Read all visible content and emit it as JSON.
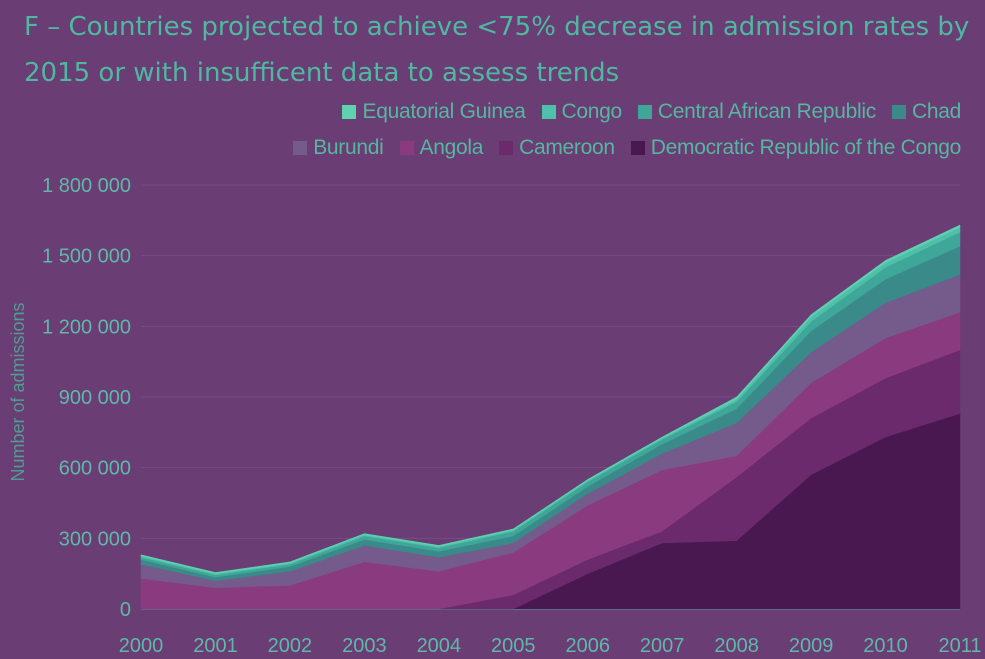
{
  "chart_data": {
    "type": "area",
    "stacked": true,
    "title": "F – Countries projected to achieve <75% decrease in admission rates by 2015 or with insufficent data to assess trends",
    "ylabel": "Number of admissions",
    "xlabel": "",
    "x": [
      "2000",
      "2001",
      "2002",
      "2003",
      "2004",
      "2005",
      "2006",
      "2007",
      "2008",
      "2009",
      "2010",
      "2011"
    ],
    "yticks": [
      "0",
      "300 000",
      "600 000",
      "900 000",
      "1 200 000",
      "1 500 000",
      "1 800 000"
    ],
    "ylim": [
      0,
      1800000
    ],
    "grid": true,
    "legend_position": "top-right",
    "legend_order": [
      "Equatorial Guinea",
      "Congo",
      "Central African Republic",
      "Chad",
      "Burundi",
      "Angola",
      "Cameroon",
      "Democratic Republic of the Congo"
    ],
    "series": [
      {
        "name": "Democratic Republic of the Congo",
        "color": "#4a1850",
        "values": [
          0,
          0,
          0,
          0,
          0,
          0,
          150000,
          280000,
          290000,
          570000,
          730000,
          830000
        ]
      },
      {
        "name": "Cameroon",
        "color": "#6a2a6c",
        "values": [
          0,
          0,
          0,
          0,
          0,
          60000,
          60000,
          50000,
          270000,
          240000,
          250000,
          270000
        ]
      },
      {
        "name": "Angola",
        "color": "#8a3a7e",
        "values": [
          130000,
          90000,
          100000,
          200000,
          160000,
          180000,
          230000,
          260000,
          90000,
          150000,
          170000,
          160000
        ]
      },
      {
        "name": "Burundi",
        "color": "#755a8c",
        "values": [
          60000,
          30000,
          60000,
          70000,
          60000,
          40000,
          50000,
          70000,
          140000,
          130000,
          150000,
          160000
        ]
      },
      {
        "name": "Chad",
        "color": "#3a8a8a",
        "values": [
          20000,
          15000,
          20000,
          25000,
          25000,
          30000,
          30000,
          40000,
          60000,
          90000,
          100000,
          120000
        ]
      },
      {
        "name": "Central African Republic",
        "color": "#3fa69a",
        "values": [
          10000,
          10000,
          10000,
          15000,
          15000,
          20000,
          20000,
          20000,
          30000,
          40000,
          50000,
          60000
        ]
      },
      {
        "name": "Congo",
        "color": "#4ebfa8",
        "values": [
          5000,
          5000,
          5000,
          5000,
          5000,
          5000,
          5000,
          5000,
          10000,
          20000,
          20000,
          20000
        ]
      },
      {
        "name": "Equatorial Guinea",
        "color": "#5fd0b0",
        "values": [
          5000,
          5000,
          5000,
          5000,
          5000,
          5000,
          5000,
          5000,
          10000,
          10000,
          10000,
          10000
        ]
      }
    ]
  }
}
